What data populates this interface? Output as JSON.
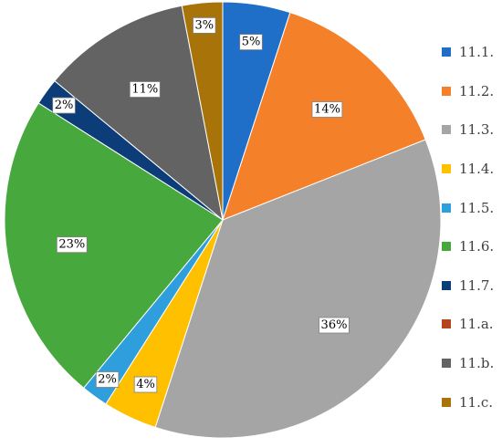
{
  "chart_data": {
    "type": "pie",
    "title": "",
    "legend_position": "right",
    "series": [
      {
        "name": "11.1.",
        "value": 5,
        "label": "5%",
        "color": "#1F6FC8"
      },
      {
        "name": "11.2.",
        "value": 14,
        "label": "14%",
        "color": "#F5802A"
      },
      {
        "name": "11.3.",
        "value": 36,
        "label": "36%",
        "color": "#A5A5A5"
      },
      {
        "name": "11.4.",
        "value": 4,
        "label": "4%",
        "color": "#FFC000"
      },
      {
        "name": "11.5.",
        "value": 2,
        "label": "2%",
        "color": "#2E9EDC"
      },
      {
        "name": "11.6.",
        "value": 23,
        "label": "23%",
        "color": "#46A83D"
      },
      {
        "name": "11.7.",
        "value": 2,
        "label": "2%",
        "color": "#0C3D78"
      },
      {
        "name": "11.a.",
        "value": 0,
        "label": "",
        "color": "#B5461B"
      },
      {
        "name": "11.b.",
        "value": 11,
        "label": "11%",
        "color": "#636363"
      },
      {
        "name": "11.c.",
        "value": 3,
        "label": "3%",
        "color": "#A87308"
      }
    ]
  }
}
